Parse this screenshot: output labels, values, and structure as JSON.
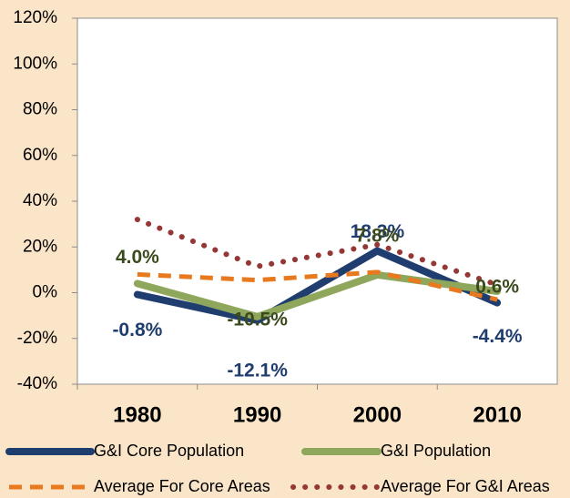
{
  "chart_data": {
    "type": "line",
    "categories": [
      "1980",
      "1990",
      "2000",
      "2010"
    ],
    "series": [
      {
        "name": "G&I Core Population",
        "color": "#1f3d6e",
        "style": "solid",
        "values": [
          -0.8,
          -12.1,
          18.3,
          -4.4
        ],
        "value_labels": [
          "-0.8%",
          "-12.1%",
          "18.3%",
          "-4.4%"
        ]
      },
      {
        "name": "G&I Population",
        "color": "#8ea75c",
        "style": "solid",
        "values": [
          4.0,
          -10.5,
          7.8,
          0.6
        ],
        "value_labels": [
          "4.0%",
          "-10.5%",
          "7.8%",
          "0.6%"
        ]
      },
      {
        "name": "Average For Core Areas",
        "color": "#e8791f",
        "style": "dashed",
        "values": [
          8,
          5.5,
          9,
          -3
        ]
      },
      {
        "name": "Average For G&I Areas",
        "color": "#953735",
        "style": "dotted",
        "values": [
          32,
          11.5,
          21,
          3.5
        ]
      }
    ],
    "ylim": [
      -40,
      120
    ],
    "yticks": [
      {
        "value": -40,
        "label": "-40%"
      },
      {
        "value": -20,
        "label": "-20%"
      },
      {
        "value": 0,
        "label": "0%"
      },
      {
        "value": 20,
        "label": "20%"
      },
      {
        "value": 40,
        "label": "40%"
      },
      {
        "value": 60,
        "label": "60%"
      },
      {
        "value": 80,
        "label": "80%"
      },
      {
        "value": 100,
        "label": "100%"
      },
      {
        "value": 120,
        "label": "120%"
      }
    ],
    "legend": "bottom"
  }
}
